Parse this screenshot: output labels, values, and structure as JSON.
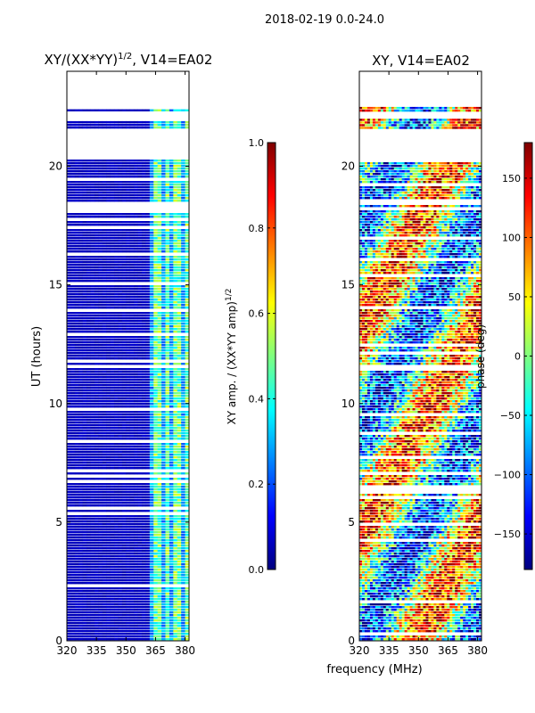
{
  "page_title": "2018-02-19 0.0-24.0",
  "shared_xlabel": "frequency (MHz)",
  "colormap": [
    "#00007f",
    "#0000ff",
    "#007fff",
    "#00ffff",
    "#7fff7f",
    "#ffff00",
    "#ff7f00",
    "#ff0000",
    "#7f0000"
  ],
  "chart_data": [
    {
      "type": "heatmap",
      "title": "XY/(XX*YY)",
      "title_sup": "1/2",
      "title_suffix": ", V14=EA02",
      "xlabel": "",
      "ylabel": "UT (hours)",
      "xlim": [
        320,
        382
      ],
      "ylim": [
        0,
        24
      ],
      "xticks": [
        {
          "value": 320,
          "label": "320"
        },
        {
          "value": 335,
          "label": "335"
        },
        {
          "value": 350,
          "label": "350"
        },
        {
          "value": 365,
          "label": "365"
        },
        {
          "value": 380,
          "label": "380"
        }
      ],
      "yticks": [
        {
          "value": 0,
          "label": "0"
        },
        {
          "value": 5,
          "label": "5"
        },
        {
          "value": 10,
          "label": "10"
        },
        {
          "value": 15,
          "label": "15"
        },
        {
          "value": 20,
          "label": "20"
        }
      ],
      "colorbar": {
        "label": "XY amp. / (XX*YY amp)",
        "label_sup": "1/2",
        "range": [
          0.0,
          1.0
        ],
        "ticks": [
          {
            "value": 0.0,
            "label": "0.0"
          },
          {
            "value": 0.2,
            "label": "0.2"
          },
          {
            "value": 0.4,
            "label": "0.4"
          },
          {
            "value": 0.6,
            "label": "0.6"
          },
          {
            "value": 0.8,
            "label": "0.8"
          },
          {
            "value": 1.0,
            "label": "1.0"
          }
        ]
      },
      "data_extent_hours": [
        0,
        20.3
      ],
      "extra_rows_hours": [
        [
          21.6,
          21.9
        ],
        [
          22.3,
          22.4
        ]
      ],
      "low_band_mhz": [
        320,
        362
      ],
      "low_band_value": 0.05,
      "high_band_mhz": [
        362,
        382
      ],
      "high_band_bright_mhz": [
        [
          364,
          367
        ],
        [
          370,
          372
        ],
        [
          375,
          377
        ],
        [
          380,
          382
        ]
      ]
    },
    {
      "type": "heatmap",
      "title": "XY, V14=EA02",
      "xlabel": "frequency (MHz)",
      "ylabel": "",
      "xlim": [
        320,
        382
      ],
      "ylim": [
        0,
        24
      ],
      "xticks": [
        {
          "value": 320,
          "label": "320"
        },
        {
          "value": 335,
          "label": "335"
        },
        {
          "value": 350,
          "label": "350"
        },
        {
          "value": 365,
          "label": "365"
        },
        {
          "value": 380,
          "label": "380"
        }
      ],
      "yticks": [
        {
          "value": 0,
          "label": "0"
        },
        {
          "value": 5,
          "label": "5"
        },
        {
          "value": 10,
          "label": "10"
        },
        {
          "value": 15,
          "label": "15"
        },
        {
          "value": 20,
          "label": "20"
        }
      ],
      "colorbar": {
        "label": "phase (deg)",
        "range": [
          -180,
          180
        ],
        "ticks": [
          {
            "value": -150,
            "label": "−150"
          },
          {
            "value": -100,
            "label": "−100"
          },
          {
            "value": -50,
            "label": "−50"
          },
          {
            "value": 0,
            "label": "0"
          },
          {
            "value": 50,
            "label": "50"
          },
          {
            "value": 100,
            "label": "100"
          },
          {
            "value": 150,
            "label": "150"
          }
        ]
      },
      "data_extent_hours": [
        0,
        20.3
      ],
      "extra_rows_hours": [
        [
          21.6,
          22.0
        ],
        [
          22.3,
          22.5
        ]
      ]
    }
  ]
}
